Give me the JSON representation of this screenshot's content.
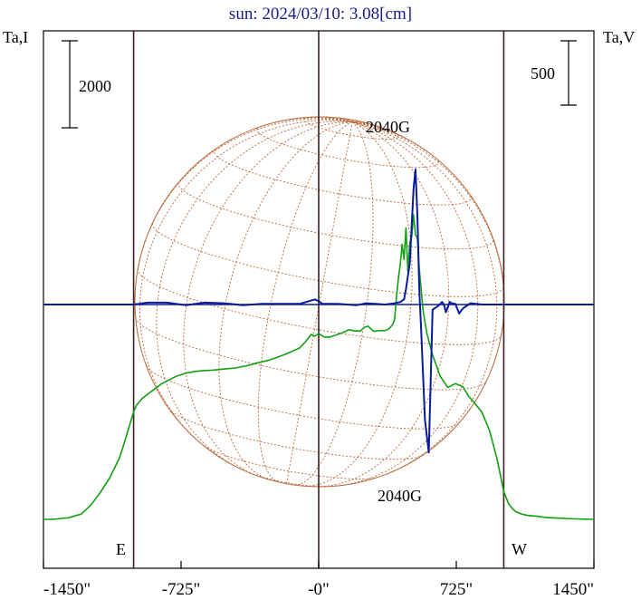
{
  "title": "sun: 2024/03/10: 3.08[cm]",
  "left_axis_label": "Ta,I",
  "right_axis_label": "Ta,V",
  "scale_bar_left": "2000",
  "scale_bar_right": "500",
  "marker_east": "E",
  "marker_west": "W",
  "peak_label_top": "2040G",
  "peak_label_bottom": "2040G",
  "colors": {
    "intensity": "#11a011",
    "polarization": "#0b1a9c",
    "disk": "#b8683a",
    "frame": "#000000",
    "vlines": "#3a1f1f",
    "title": "#1a1a8c"
  },
  "chart_data": {
    "type": "line",
    "title": "sun: 2024/03/10: 3.08[cm]",
    "xlabel": "",
    "ylabel_left": "Ta,I",
    "ylabel_right": "Ta,V",
    "x_tick_labels": [
      "-1450\"",
      "-725\"",
      "-0\"",
      "725\"",
      "1450\""
    ],
    "x_ticks": [
      -1450,
      -725,
      0,
      725,
      1450
    ],
    "xlim": [
      -1450,
      1450
    ],
    "vertical_lines": [
      -975,
      0,
      975
    ],
    "scale_bars": {
      "I": 2000,
      "V": 500
    },
    "series": [
      {
        "id": "I",
        "x": [
          -1450,
          -1400,
          -1320,
          -1250,
          -1200,
          -1150,
          -1100,
          -1050,
          -1030,
          -1010,
          -990,
          -975,
          -960,
          -930,
          -900,
          -860,
          -830,
          -790,
          -750,
          -700,
          -650,
          -600,
          -560,
          -500,
          -440,
          -380,
          -320,
          -260,
          -220,
          -180,
          -140,
          -100,
          -70,
          -40,
          -20,
          0,
          30,
          60,
          100,
          130,
          160,
          190,
          220,
          240,
          260,
          290,
          320,
          350,
          370,
          390,
          400,
          410,
          420,
          430,
          440,
          450,
          460,
          470,
          480,
          490,
          500,
          510,
          520,
          530,
          550,
          570,
          600,
          640,
          680,
          720,
          760,
          790,
          820,
          860,
          900,
          940,
          975,
          1000,
          1020,
          1040,
          1070,
          1100,
          1150,
          1200,
          1280,
          1350,
          1400,
          1450
        ],
        "y": [
          1,
          1,
          35,
          120,
          330,
          620,
          960,
          1410,
          1680,
          1960,
          2250,
          2470,
          2620,
          2780,
          2880,
          3010,
          3110,
          3200,
          3290,
          3360,
          3400,
          3420,
          3430,
          3455,
          3480,
          3530,
          3600,
          3660,
          3720,
          3790,
          3860,
          3940,
          4080,
          4250,
          4210,
          4270,
          4190,
          4190,
          4250,
          4300,
          4360,
          4330,
          4330,
          4410,
          4440,
          4320,
          4340,
          4340,
          4380,
          4480,
          4600,
          5130,
          5550,
          5880,
          6320,
          5970,
          6700,
          5700,
          6360,
          6480,
          7000,
          6540,
          6470,
          5760,
          4800,
          4270,
          3780,
          3290,
          3030,
          3120,
          3050,
          2830,
          2680,
          2460,
          2040,
          1380,
          640,
          360,
          250,
          170,
          120,
          90,
          70,
          40,
          25,
          10,
          5,
          0
        ]
      },
      {
        "id": "V",
        "x": [
          -1450,
          -975,
          -900,
          -800,
          -700,
          -600,
          -500,
          -400,
          -300,
          -200,
          -100,
          -20,
          0,
          20,
          100,
          200,
          250,
          300,
          350,
          400,
          430,
          450,
          460,
          480,
          500,
          510,
          520,
          530,
          540,
          560,
          580,
          600,
          630,
          650,
          660,
          670,
          680,
          690,
          700,
          720,
          740,
          760,
          800,
          860,
          900,
          975,
          1000,
          1100,
          1200,
          1300,
          1450
        ],
        "y": [
          0,
          0,
          15,
          15,
          -5,
          15,
          10,
          -5,
          5,
          5,
          5,
          40,
          25,
          5,
          5,
          -5,
          10,
          5,
          0,
          10,
          20,
          40,
          120,
          320,
          900,
          1050,
          700,
          120,
          -200,
          -900,
          -1150,
          -40,
          -10,
          20,
          0,
          -60,
          -20,
          20,
          10,
          5,
          -70,
          -30,
          10,
          0,
          0,
          0,
          0,
          0,
          0,
          0,
          0
        ]
      }
    ]
  }
}
